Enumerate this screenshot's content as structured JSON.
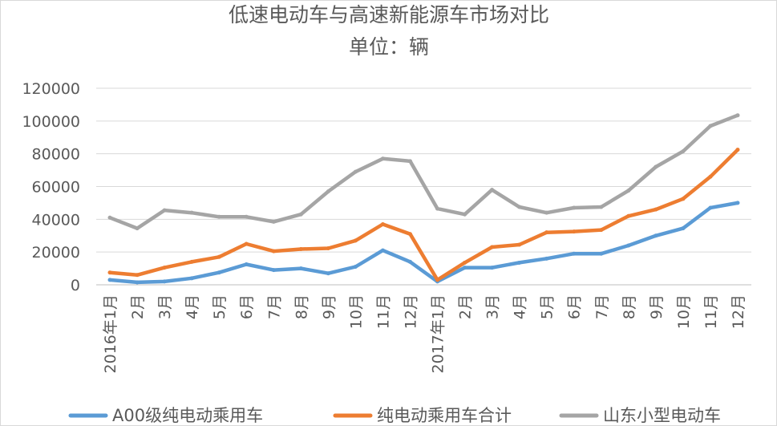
{
  "chart_data": {
    "type": "line",
    "title": "低速电动车与高速新能源车市场对比",
    "subtitle": "单位：辆",
    "xlabel": "",
    "ylabel": "",
    "ylim": [
      0,
      120000
    ],
    "yticks": [
      0,
      20000,
      40000,
      60000,
      80000,
      100000,
      120000
    ],
    "ytick_labels": [
      "0",
      "20000",
      "40000",
      "60000",
      "80000",
      "100000",
      "120000"
    ],
    "grid": true,
    "legend_position": "bottom",
    "categories": [
      "2016年1月",
      "2月",
      "3月",
      "4月",
      "5月",
      "6月",
      "7月",
      "8月",
      "9月",
      "10月",
      "11月",
      "12月",
      "2017年1月",
      "2月",
      "3月",
      "4月",
      "5月",
      "6月",
      "7月",
      "8月",
      "9月",
      "10月",
      "11月",
      "12月"
    ],
    "series": [
      {
        "name": "A00级纯电动乘用车",
        "color": "#5b9bd5",
        "values": [
          3000,
          1500,
          2000,
          4000,
          7500,
          12500,
          9000,
          10000,
          7000,
          11000,
          21000,
          14000,
          2000,
          10500,
          10500,
          13500,
          16000,
          19000,
          19000,
          24000,
          30000,
          34500,
          47000,
          50000
        ]
      },
      {
        "name": "纯电动乘用车合计",
        "color": "#ed7d31",
        "values": [
          7500,
          6000,
          10500,
          14000,
          17000,
          25000,
          20500,
          21800,
          22300,
          27000,
          37000,
          31000,
          3000,
          13500,
          23000,
          24500,
          32000,
          32500,
          33500,
          42000,
          46000,
          52500,
          66000,
          82500
        ]
      },
      {
        "name": "山东小型电动车",
        "color": "#a5a5a5",
        "values": [
          41000,
          34500,
          45500,
          44000,
          41500,
          41500,
          38500,
          43000,
          57000,
          69000,
          77000,
          75500,
          46500,
          43000,
          58000,
          47500,
          44000,
          47000,
          47500,
          57500,
          72000,
          81500,
          97000,
          103500
        ]
      }
    ]
  }
}
